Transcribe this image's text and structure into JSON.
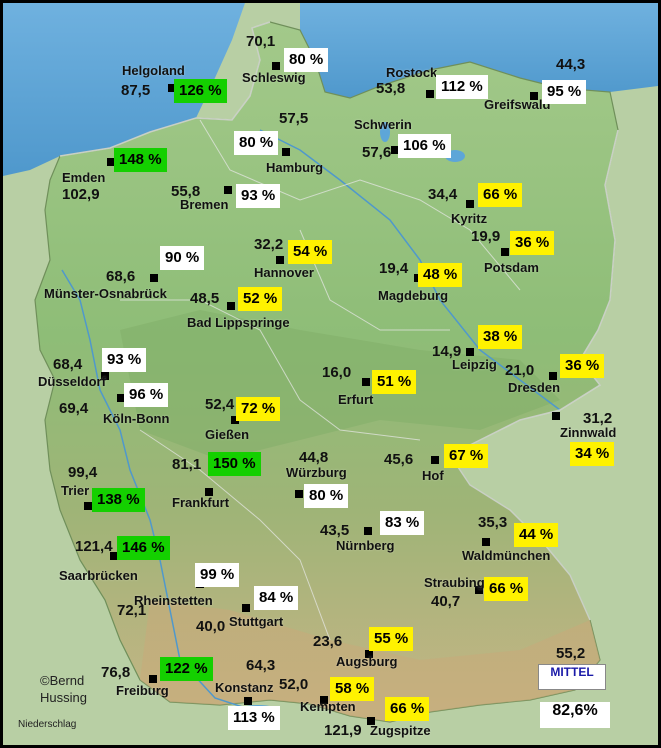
{
  "legend": {
    "credit_line1": "©Bernd",
    "credit_line2": "Hussing",
    "label": "Niederschlag",
    "mittel_title": "MITTEL",
    "mittel_value": "82,6%"
  },
  "colors": {
    "water": "#5da6d8",
    "land_low": "#8fbf7a",
    "land_high": "#c9b88a",
    "marker": "#000000",
    "pct_white": "#ffffff",
    "pct_yellow": "#fff200",
    "pct_green": "#14d000"
  },
  "stations": [
    {
      "id": "helgoland",
      "name": "Helgoland",
      "value": "87,5",
      "pct": "126 %",
      "color": "green"
    },
    {
      "id": "schleswig",
      "name": "Schleswig",
      "value": "70,1",
      "pct": "80 %",
      "color": "white"
    },
    {
      "id": "rostock",
      "name": "Rostock",
      "value": "53,8",
      "pct": "112 %",
      "color": "white"
    },
    {
      "id": "greifswald",
      "name": "Greifswald",
      "value": "44,3",
      "pct": "95 %",
      "color": "white"
    },
    {
      "id": "emden",
      "name": "Emden",
      "value": "102,9",
      "pct": "148 %",
      "color": "green"
    },
    {
      "id": "hamburg",
      "name": "Hamburg",
      "value": "57,5",
      "pct": "80 %",
      "color": "white"
    },
    {
      "id": "schwerin",
      "name": "Schwerin",
      "value": "57,6",
      "pct": "106 %",
      "color": "white"
    },
    {
      "id": "bremen",
      "name": "Bremen",
      "value": "55,8",
      "pct": "93 %",
      "color": "white"
    },
    {
      "id": "kyritz",
      "name": "Kyritz",
      "value": "34,4",
      "pct": "66 %",
      "color": "yellow"
    },
    {
      "id": "potsdam",
      "name": "Potsdam",
      "value": "19,9",
      "pct": "36 %",
      "color": "yellow"
    },
    {
      "id": "hannover",
      "name": "Hannover",
      "value": "32,2",
      "pct": "54 %",
      "color": "yellow"
    },
    {
      "id": "muenster",
      "name": "Münster-Osnabrück",
      "value": "68,6",
      "pct": "90 %",
      "color": "white"
    },
    {
      "id": "magdeburg",
      "name": "Magdeburg",
      "value": "19,4",
      "pct": "48 %",
      "color": "yellow"
    },
    {
      "id": "badlipp",
      "name": "Bad Lippspringe",
      "value": "48,5",
      "pct": "52 %",
      "color": "yellow"
    },
    {
      "id": "leipzig",
      "name": "Leipzig",
      "value": "14,9",
      "pct": "38 %",
      "color": "yellow"
    },
    {
      "id": "duesseldorf",
      "name": "Düsseldorf",
      "value": "68,4",
      "pct": "93 %",
      "color": "white"
    },
    {
      "id": "erfurt",
      "name": "Erfurt",
      "value": "16,0",
      "pct": "51 %",
      "color": "yellow"
    },
    {
      "id": "dresden",
      "name": "Dresden",
      "value": "21,0",
      "pct": "36 %",
      "color": "yellow"
    },
    {
      "id": "koeln",
      "name": "Köln-Bonn",
      "value": "69,4",
      "pct": "96 %",
      "color": "white"
    },
    {
      "id": "giessen",
      "name": "Gießen",
      "value": "52,4",
      "pct": "72 %",
      "color": "yellow"
    },
    {
      "id": "zinnwald",
      "name": "Zinnwald",
      "value": "31,2",
      "pct": "34 %",
      "color": "yellow"
    },
    {
      "id": "trier",
      "name": "Trier",
      "value": "99,4",
      "pct": "138 %",
      "color": "green"
    },
    {
      "id": "frankfurt",
      "name": "Frankfurt",
      "value": "81,1",
      "pct": "150 %",
      "color": "green"
    },
    {
      "id": "wuerzburg",
      "name": "Würzburg",
      "value": "44,8",
      "pct": "80 %",
      "color": "white"
    },
    {
      "id": "hof",
      "name": "Hof",
      "value": "45,6",
      "pct": "67 %",
      "color": "yellow"
    },
    {
      "id": "nuernberg",
      "name": "Nürnberg",
      "value": "43,5",
      "pct": "83 %",
      "color": "white"
    },
    {
      "id": "waldmuenchen",
      "name": "Waldmünchen",
      "value": "35,3",
      "pct": "44 %",
      "color": "yellow"
    },
    {
      "id": "saarbruecken",
      "name": "Saarbrücken",
      "value": "121,4",
      "pct": "146 %",
      "color": "green"
    },
    {
      "id": "rheinstetten",
      "name": "Rheinstetten",
      "value": "72,1",
      "pct": "99 %",
      "color": "white"
    },
    {
      "id": "stuttgart",
      "name": "Stuttgart",
      "value": "40,0",
      "pct": "84 %",
      "color": "white"
    },
    {
      "id": "straubing",
      "name": "Straubing",
      "value": "40,7",
      "pct": "66 %",
      "color": "yellow"
    },
    {
      "id": "augsburg",
      "name": "Augsburg",
      "value": "23,6",
      "pct": "55 %",
      "color": "yellow"
    },
    {
      "id": "muenchen",
      "name": "",
      "value": "55,2",
      "pct": "",
      "color": "none"
    },
    {
      "id": "freiburg",
      "name": "Freiburg",
      "value": "76,8",
      "pct": "122 %",
      "color": "green"
    },
    {
      "id": "konstanz",
      "name": "Konstanz",
      "value": "64,3",
      "pct": "113 %",
      "color": "white"
    },
    {
      "id": "kempten",
      "name": "Kempten",
      "value": "52,0",
      "pct": "58 %",
      "color": "yellow"
    },
    {
      "id": "zugspitze",
      "name": "Zugspitze",
      "value": "121,9",
      "pct": "66 %",
      "color": "yellow"
    }
  ]
}
